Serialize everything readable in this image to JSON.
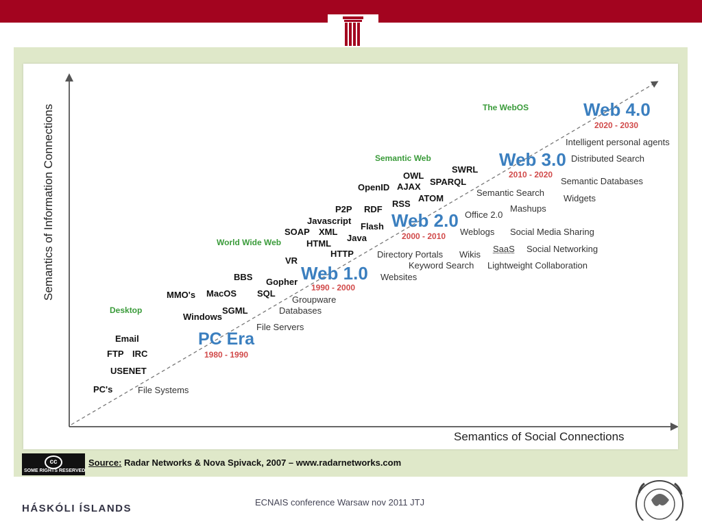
{
  "header": {
    "bar_color": "#a3041f"
  },
  "diagram": {
    "y_axis_label": "Semantics of Information Connections",
    "x_axis_label": "Semantics of Social Connections",
    "eras": [
      {
        "name": "PC Era",
        "years": "1980 - 1990"
      },
      {
        "name": "Web 1.0",
        "years": "1990 - 2000"
      },
      {
        "name": "Web 2.0",
        "years": "2000 - 2010"
      },
      {
        "name": "Web 3.0",
        "years": "2010 - 2020"
      },
      {
        "name": "Web 4.0",
        "years": "2020 - 2030"
      }
    ],
    "categories": {
      "desktop": "Desktop",
      "www": "World Wide Web",
      "semantic": "Semantic Web",
      "webos": "The WebOS"
    },
    "technologies": {
      "email": "Email",
      "ftp": "FTP",
      "irc": "IRC",
      "usenet": "USENET",
      "pcs": "PC's",
      "mmos": "MMO's",
      "macos": "MacOS",
      "windows": "Windows",
      "sgml": "SGML",
      "bbs": "BBS",
      "gopher": "Gopher",
      "sql": "SQL",
      "vr": "VR",
      "soap": "SOAP",
      "xml": "XML",
      "html": "HTML",
      "http": "HTTP",
      "javascript": "Javascript",
      "p2p": "P2P",
      "rdf": "RDF",
      "flash": "Flash",
      "java": "Java",
      "openid": "OpenID",
      "ajax": "AJAX",
      "owl": "OWL",
      "sparql": "SPARQL",
      "swrl": "SWRL",
      "rss": "RSS",
      "atom": "ATOM"
    },
    "applications": {
      "file_systems": "File Systems",
      "file_servers": "File Servers",
      "groupware": "Groupware",
      "databases": "Databases",
      "websites": "Websites",
      "directory_portals": "Directory Portals",
      "keyword_search": "Keyword Search",
      "wikis": "Wikis",
      "weblogs": "Weblogs",
      "saas": "SaaS",
      "lightweight_collab": "Lightweight Collaboration",
      "social_media": "Social Media Sharing",
      "social_networking": "Social Networking",
      "office20": "Office 2.0",
      "mashups": "Mashups",
      "semantic_search": "Semantic Search",
      "semantic_db": "Semantic Databases",
      "widgets": "Widgets",
      "distributed_search": "Distributed Search",
      "agents": "Intelligent personal agents"
    }
  },
  "license": {
    "symbol": "cc",
    "text": "SOME RIGHTS RESERVED"
  },
  "source": {
    "label": "Source:",
    "text": "Radar Networks & Nova Spivack, 2007 – www.radarnetworks.com"
  },
  "footer": {
    "university": "HÁSKÓLI ÍSLANDS",
    "conference": "ECNAIS conference Warsaw nov 2011 JTJ"
  }
}
